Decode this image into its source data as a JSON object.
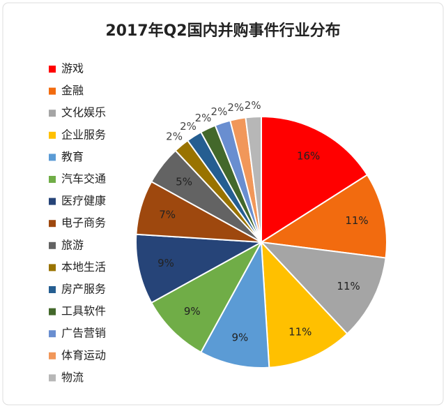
{
  "chart_data": {
    "type": "pie",
    "title": "2017年Q2国内并购事件行业分布",
    "categories": [
      "游戏",
      "金融",
      "文化娱乐",
      "企业服务",
      "教育",
      "汽车交通",
      "医疗健康",
      "电子商务",
      "旅游",
      "本地生活",
      "房产服务",
      "工具软件",
      "广告营销",
      "体育运动",
      "物流"
    ],
    "values": [
      16,
      11,
      11,
      11,
      9,
      9,
      9,
      7,
      5,
      2,
      2,
      2,
      2,
      2,
      2
    ],
    "value_labels": [
      "16%",
      "11%",
      "11%",
      "11%",
      "9%",
      "9%",
      "9%",
      "7%",
      "5%",
      "2%",
      "2%",
      "2%",
      "2%",
      "2%",
      "2%"
    ],
    "colors": [
      "#ff0000",
      "#f26b0f",
      "#a5a5a5",
      "#ffc000",
      "#5b9bd5",
      "#70ad47",
      "#264478",
      "#9e480e",
      "#636363",
      "#997300",
      "#255e91",
      "#43682b",
      "#698ed0",
      "#f1975a",
      "#b7b7b7"
    ],
    "legend": "left"
  }
}
